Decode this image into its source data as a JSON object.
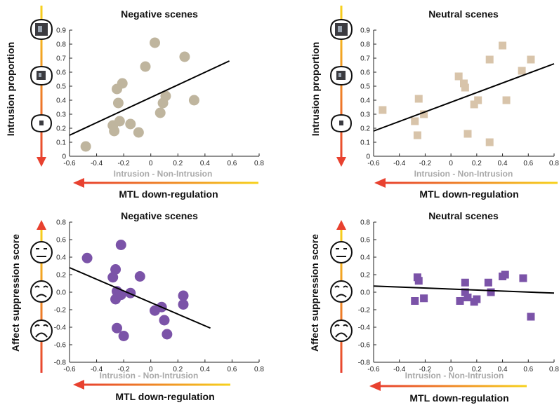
{
  "colors": {
    "negative_intrusion": "#bfb59e",
    "neutral_intrusion": "#d8c4aa",
    "affect": "#7b53a8",
    "arrow_red": "#e8412f",
    "arrow_yellow": "#f7d21d",
    "xlabel_gray": "#a9a9a9"
  },
  "chart_data": [
    {
      "type": "scatter",
      "title": "Negative scenes",
      "xlabel": "Intrusion - Non-Intrusion",
      "ylabel": "Intrusion proportion",
      "arrow_label": "MTL down-regulation",
      "marker": "circle",
      "color": "#bfb59e",
      "xlim": [
        -0.6,
        0.8
      ],
      "ylim": [
        0,
        0.9
      ],
      "xticks": [
        "-0.6",
        "-0.4",
        "-0.2",
        "0",
        "0.2",
        "0.4",
        "0.6",
        "0.8"
      ],
      "yticks": [
        "0",
        "0.1",
        "0.2",
        "0.3",
        "0.4",
        "0.5",
        "0.6",
        "0.7",
        "0.8",
        "0.9"
      ],
      "points": [
        {
          "x": -0.48,
          "y": 0.07
        },
        {
          "x": -0.28,
          "y": 0.22
        },
        {
          "x": -0.27,
          "y": 0.18
        },
        {
          "x": -0.23,
          "y": 0.25
        },
        {
          "x": -0.24,
          "y": 0.38
        },
        {
          "x": -0.25,
          "y": 0.48
        },
        {
          "x": -0.21,
          "y": 0.52
        },
        {
          "x": -0.15,
          "y": 0.23
        },
        {
          "x": -0.09,
          "y": 0.17
        },
        {
          "x": -0.04,
          "y": 0.64
        },
        {
          "x": 0.03,
          "y": 0.81
        },
        {
          "x": 0.07,
          "y": 0.31
        },
        {
          "x": 0.09,
          "y": 0.38
        },
        {
          "x": 0.11,
          "y": 0.43
        },
        {
          "x": 0.25,
          "y": 0.71
        },
        {
          "x": 0.32,
          "y": 0.4
        }
      ],
      "fit": {
        "x": [
          -0.6,
          0.58
        ],
        "y": [
          0.15,
          0.68
        ]
      },
      "scale_icons": [
        "high-intrusion-thought-icon",
        "medium-intrusion-thought-icon",
        "low-intrusion-thought-icon"
      ]
    },
    {
      "type": "scatter",
      "title": "Neutral scenes",
      "xlabel": "Intrusion - Non-Intrusion",
      "ylabel": "Intrusion proportion",
      "arrow_label": "MTL down-regulation",
      "marker": "square",
      "color": "#d8c4aa",
      "xlim": [
        -0.6,
        0.8
      ],
      "ylim": [
        0,
        0.9
      ],
      "xticks": [
        "-0.6",
        "-0.4",
        "-0.2",
        "0",
        "0.2",
        "0.4",
        "0.6",
        "0.8"
      ],
      "yticks": [
        "0",
        "0.1",
        "0.2",
        "0.3",
        "0.4",
        "0.5",
        "0.6",
        "0.7",
        "0.8",
        "0.9"
      ],
      "points": [
        {
          "x": -0.53,
          "y": 0.33
        },
        {
          "x": -0.28,
          "y": 0.25
        },
        {
          "x": -0.26,
          "y": 0.15
        },
        {
          "x": -0.25,
          "y": 0.41
        },
        {
          "x": -0.21,
          "y": 0.3
        },
        {
          "x": 0.06,
          "y": 0.57
        },
        {
          "x": 0.1,
          "y": 0.52
        },
        {
          "x": 0.11,
          "y": 0.49
        },
        {
          "x": 0.13,
          "y": 0.16
        },
        {
          "x": 0.18,
          "y": 0.37
        },
        {
          "x": 0.21,
          "y": 0.4
        },
        {
          "x": 0.3,
          "y": 0.1
        },
        {
          "x": 0.3,
          "y": 0.69
        },
        {
          "x": 0.4,
          "y": 0.79
        },
        {
          "x": 0.43,
          "y": 0.4
        },
        {
          "x": 0.55,
          "y": 0.61
        },
        {
          "x": 0.62,
          "y": 0.69
        }
      ],
      "fit": {
        "x": [
          -0.6,
          0.8
        ],
        "y": [
          0.18,
          0.66
        ]
      },
      "scale_icons": [
        "high-intrusion-thought-icon",
        "medium-intrusion-thought-icon",
        "low-intrusion-thought-icon"
      ]
    },
    {
      "type": "scatter",
      "title": "Negative scenes",
      "xlabel": "Intrusion - Non-Intrusion",
      "ylabel": "Affect suppression score",
      "arrow_label": "MTL down-regulation",
      "marker": "circle",
      "color": "#7b53a8",
      "xlim": [
        -0.6,
        0.8
      ],
      "ylim": [
        -0.8,
        0.8
      ],
      "xticks": [
        "-0.6",
        "-0.4",
        "-0.2",
        "0",
        "0.2",
        "0.4",
        "0.6",
        "0.8"
      ],
      "yticks": [
        "-0.8",
        "-0.6",
        "-0.4",
        "-0.2",
        "0.0",
        "0.2",
        "0.4",
        "0.6",
        "0.8"
      ],
      "points": [
        {
          "x": -0.47,
          "y": 0.39
        },
        {
          "x": -0.26,
          "y": 0.26
        },
        {
          "x": -0.28,
          "y": 0.17
        },
        {
          "x": -0.25,
          "y": 0.01
        },
        {
          "x": -0.26,
          "y": -0.08
        },
        {
          "x": -0.22,
          "y": -0.03
        },
        {
          "x": -0.22,
          "y": 0.54
        },
        {
          "x": -0.25,
          "y": -0.41
        },
        {
          "x": -0.2,
          "y": -0.5
        },
        {
          "x": -0.15,
          "y": -0.01
        },
        {
          "x": -0.08,
          "y": 0.18
        },
        {
          "x": 0.03,
          "y": -0.21
        },
        {
          "x": 0.08,
          "y": -0.17
        },
        {
          "x": 0.1,
          "y": -0.32
        },
        {
          "x": 0.12,
          "y": -0.48
        },
        {
          "x": 0.24,
          "y": -0.04
        },
        {
          "x": 0.24,
          "y": -0.14
        }
      ],
      "fit": {
        "x": [
          -0.6,
          0.44
        ],
        "y": [
          0.28,
          -0.41
        ]
      },
      "scale_icons": [
        "neutral-face-icon",
        "sad-face-icon",
        "distressed-face-icon"
      ]
    },
    {
      "type": "scatter",
      "title": "Neutral scenes",
      "xlabel": "Intrusion - Non-Intrusion",
      "ylabel": "Affect suppression score",
      "arrow_label": "MTL down-regulation",
      "marker": "square",
      "color": "#7b53a8",
      "xlim": [
        -0.6,
        0.8
      ],
      "ylim": [
        -0.8,
        0.8
      ],
      "xticks": [
        "-0.6",
        "-0.4",
        "-0.2",
        "0",
        "0.2",
        "0.4",
        "0.6",
        "0.8"
      ],
      "yticks": [
        "-0.8",
        "-0.6",
        "-0.4",
        "-0.2",
        "0.0",
        "0.2",
        "0.4",
        "0.6",
        "0.8"
      ],
      "points": [
        {
          "x": -0.28,
          "y": -0.1
        },
        {
          "x": -0.26,
          "y": 0.17
        },
        {
          "x": -0.25,
          "y": 0.13
        },
        {
          "x": -0.21,
          "y": -0.07
        },
        {
          "x": 0.07,
          "y": -0.1
        },
        {
          "x": 0.11,
          "y": 0.11
        },
        {
          "x": 0.11,
          "y": 0.0
        },
        {
          "x": 0.13,
          "y": -0.06
        },
        {
          "x": 0.18,
          "y": -0.11
        },
        {
          "x": 0.2,
          "y": -0.08
        },
        {
          "x": 0.29,
          "y": 0.11
        },
        {
          "x": 0.31,
          "y": 0.0
        },
        {
          "x": 0.4,
          "y": 0.18
        },
        {
          "x": 0.42,
          "y": 0.2
        },
        {
          "x": 0.56,
          "y": 0.16
        },
        {
          "x": 0.62,
          "y": -0.28
        }
      ],
      "fit": {
        "x": [
          -0.6,
          0.8
        ],
        "y": [
          0.07,
          -0.01
        ]
      },
      "scale_icons": [
        "neutral-face-icon",
        "sad-face-icon",
        "distressed-face-icon"
      ]
    }
  ]
}
